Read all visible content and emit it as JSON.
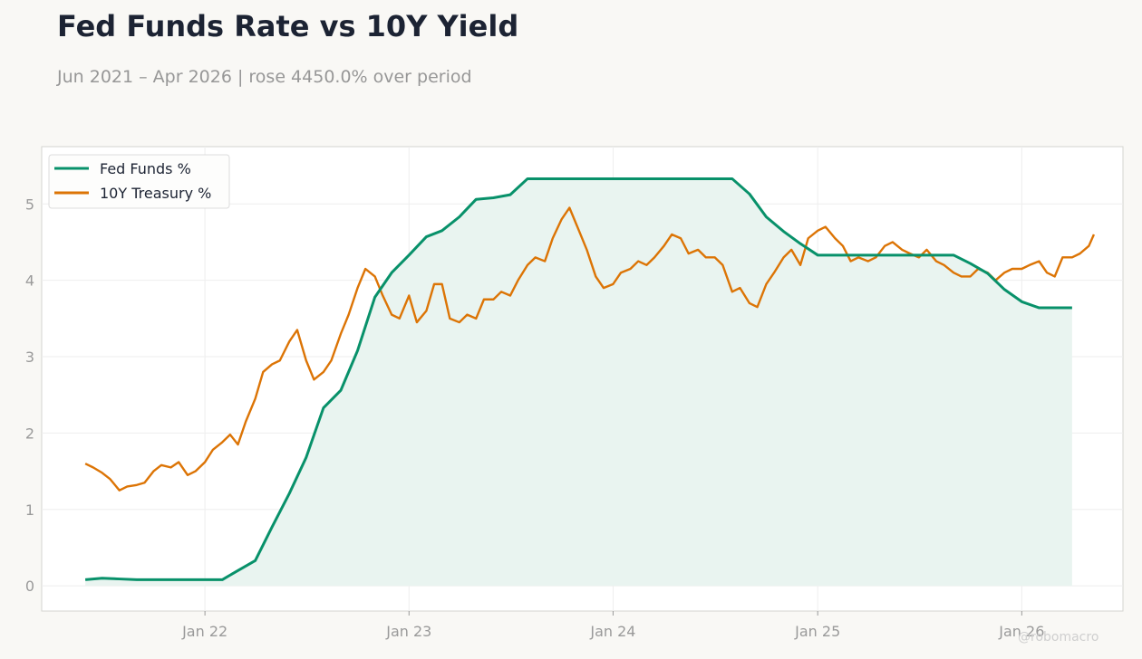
{
  "title": "Fed Funds Rate vs 10Y Yield",
  "subtitle": "Jun 2021 – Apr 2026 | rose 4450.0% over period",
  "watermark": "@robomacro",
  "colors": {
    "fed_funds": "#08916a",
    "treasury": "#dc7405",
    "fed_fill": "#e9f4f0",
    "grid": "#eeeeee",
    "frame": "#d4d4d0"
  },
  "chart_data": {
    "type": "line",
    "title": "Fed Funds Rate vs 10Y Yield",
    "subtitle": "Jun 2021 – Apr 2026 | rose 4450.0% over period",
    "xlabel": "",
    "ylabel": "",
    "x_tick_labels": [
      "Jan 22",
      "Jan 23",
      "Jan 24",
      "Jan 25",
      "Jan 26"
    ],
    "y_tick_labels": [
      "0",
      "1",
      "2",
      "3",
      "4",
      "5"
    ],
    "xlim": [
      "2021-03-15",
      "2026-07-01"
    ],
    "ylim": [
      -0.33,
      5.75
    ],
    "grid": true,
    "legend": "top-left",
    "series": [
      {
        "name": "Fed Funds %",
        "area_fill": true,
        "x": [
          "2021-06-01",
          "2021-07-01",
          "2021-08-01",
          "2021-09-01",
          "2021-10-01",
          "2021-11-01",
          "2021-12-01",
          "2022-01-01",
          "2022-02-01",
          "2022-03-01",
          "2022-04-01",
          "2022-05-01",
          "2022-06-01",
          "2022-07-01",
          "2022-08-01",
          "2022-09-01",
          "2022-10-01",
          "2022-11-01",
          "2022-12-01",
          "2023-01-01",
          "2023-02-01",
          "2023-03-01",
          "2023-04-01",
          "2023-05-01",
          "2023-06-01",
          "2023-07-01",
          "2023-08-01",
          "2023-09-01",
          "2023-10-01",
          "2023-11-01",
          "2023-12-01",
          "2024-01-01",
          "2024-02-01",
          "2024-03-01",
          "2024-04-01",
          "2024-05-01",
          "2024-06-01",
          "2024-07-01",
          "2024-08-01",
          "2024-09-01",
          "2024-10-01",
          "2024-11-01",
          "2024-12-01",
          "2025-01-01",
          "2025-02-01",
          "2025-03-01",
          "2025-04-01",
          "2025-05-01",
          "2025-06-01",
          "2025-07-01",
          "2025-08-01",
          "2025-09-01",
          "2025-10-01",
          "2025-11-01",
          "2025-12-01",
          "2026-01-01",
          "2026-02-01",
          "2026-03-01",
          "2026-04-01"
        ],
        "y": [
          0.08,
          0.1,
          0.09,
          0.08,
          0.08,
          0.08,
          0.08,
          0.08,
          0.08,
          0.2,
          0.33,
          0.77,
          1.21,
          1.68,
          2.33,
          2.56,
          3.08,
          3.78,
          4.1,
          4.33,
          4.57,
          4.65,
          4.83,
          5.06,
          5.08,
          5.12,
          5.33,
          5.33,
          5.33,
          5.33,
          5.33,
          5.33,
          5.33,
          5.33,
          5.33,
          5.33,
          5.33,
          5.33,
          5.33,
          5.13,
          4.83,
          4.64,
          4.48,
          4.33,
          4.33,
          4.33,
          4.33,
          4.33,
          4.33,
          4.33,
          4.33,
          4.33,
          4.22,
          4.09,
          3.88,
          3.72,
          3.64,
          3.64,
          3.64
        ]
      },
      {
        "name": "10Y Treasury %",
        "area_fill": false,
        "x": [
          "2021-06-01",
          "2021-06-15",
          "2021-07-01",
          "2021-07-15",
          "2021-08-01",
          "2021-08-15",
          "2021-09-01",
          "2021-09-15",
          "2021-10-01",
          "2021-10-15",
          "2021-11-01",
          "2021-11-15",
          "2021-12-01",
          "2021-12-15",
          "2022-01-01",
          "2022-01-15",
          "2022-02-01",
          "2022-02-15",
          "2022-03-01",
          "2022-03-15",
          "2022-04-01",
          "2022-04-15",
          "2022-05-01",
          "2022-05-15",
          "2022-06-01",
          "2022-06-15",
          "2022-07-01",
          "2022-07-15",
          "2022-08-01",
          "2022-08-15",
          "2022-09-01",
          "2022-09-15",
          "2022-10-01",
          "2022-10-15",
          "2022-11-01",
          "2022-11-15",
          "2022-12-01",
          "2022-12-15",
          "2023-01-01",
          "2023-01-15",
          "2023-02-01",
          "2023-02-15",
          "2023-03-01",
          "2023-03-15",
          "2023-04-01",
          "2023-04-15",
          "2023-05-01",
          "2023-05-15",
          "2023-06-01",
          "2023-06-15",
          "2023-07-01",
          "2023-07-15",
          "2023-08-01",
          "2023-08-15",
          "2023-09-01",
          "2023-09-15",
          "2023-10-01",
          "2023-10-15",
          "2023-11-01",
          "2023-11-15",
          "2023-12-01",
          "2023-12-15",
          "2024-01-01",
          "2024-01-15",
          "2024-02-01",
          "2024-02-15",
          "2024-03-01",
          "2024-03-15",
          "2024-04-01",
          "2024-04-15",
          "2024-05-01",
          "2024-05-15",
          "2024-06-01",
          "2024-06-15",
          "2024-07-01",
          "2024-07-15",
          "2024-08-01",
          "2024-08-15",
          "2024-09-01",
          "2024-09-15",
          "2024-10-01",
          "2024-10-15",
          "2024-11-01",
          "2024-11-15",
          "2024-12-01",
          "2024-12-15",
          "2025-01-01",
          "2025-01-15",
          "2025-02-01",
          "2025-02-15",
          "2025-03-01",
          "2025-03-15",
          "2025-04-01",
          "2025-04-15",
          "2025-05-01",
          "2025-05-15",
          "2025-06-01",
          "2025-06-15",
          "2025-07-01",
          "2025-07-15",
          "2025-08-01",
          "2025-08-15",
          "2025-09-01",
          "2025-09-15",
          "2025-10-01",
          "2025-10-15",
          "2025-11-01",
          "2025-11-15",
          "2025-12-01",
          "2025-12-15",
          "2026-01-01",
          "2026-01-15",
          "2026-02-01",
          "2026-02-15",
          "2026-03-01",
          "2026-03-15",
          "2026-04-01",
          "2026-04-15",
          "2026-05-01",
          "2026-05-10"
        ],
        "y": [
          1.6,
          1.55,
          1.48,
          1.4,
          1.25,
          1.3,
          1.32,
          1.35,
          1.5,
          1.58,
          1.55,
          1.62,
          1.45,
          1.5,
          1.62,
          1.78,
          1.88,
          1.98,
          1.85,
          2.15,
          2.45,
          2.8,
          2.9,
          2.95,
          3.2,
          3.35,
          2.95,
          2.7,
          2.8,
          2.95,
          3.3,
          3.55,
          3.9,
          4.15,
          4.05,
          3.8,
          3.55,
          3.5,
          3.8,
          3.45,
          3.6,
          3.95,
          3.95,
          3.5,
          3.45,
          3.55,
          3.5,
          3.75,
          3.75,
          3.85,
          3.8,
          4.0,
          4.2,
          4.3,
          4.25,
          4.55,
          4.8,
          4.95,
          4.65,
          4.4,
          4.05,
          3.9,
          3.95,
          4.1,
          4.15,
          4.25,
          4.2,
          4.3,
          4.45,
          4.6,
          4.55,
          4.35,
          4.4,
          4.3,
          4.3,
          4.2,
          3.85,
          3.9,
          3.7,
          3.65,
          3.95,
          4.1,
          4.3,
          4.4,
          4.2,
          4.55,
          4.65,
          4.7,
          4.55,
          4.45,
          4.25,
          4.3,
          4.25,
          4.3,
          4.45,
          4.5,
          4.4,
          4.35,
          4.3,
          4.4,
          4.25,
          4.2,
          4.1,
          4.05,
          4.05,
          4.15,
          4.1,
          4.0,
          4.1,
          4.15,
          4.15,
          4.2,
          4.25,
          4.1,
          4.05,
          4.3,
          4.3,
          4.35,
          4.45,
          4.6
        ]
      }
    ]
  }
}
